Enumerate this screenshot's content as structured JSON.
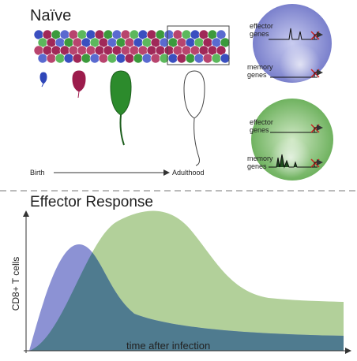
{
  "top": {
    "title": "Naïve",
    "timeline": {
      "start": "Birth",
      "end": "Adulthood"
    },
    "cells": [
      {
        "effector_label": [
          "effector",
          "genes"
        ],
        "memory_label": [
          "memory",
          "genes"
        ]
      },
      {
        "effector_label": [
          "effector",
          "genes"
        ],
        "memory_label": [
          "memory",
          "genes"
        ]
      }
    ]
  },
  "bottom": {
    "title": "Effector Response",
    "y_label": "CD8+ T cells",
    "x_label": "time after infection"
  }
}
